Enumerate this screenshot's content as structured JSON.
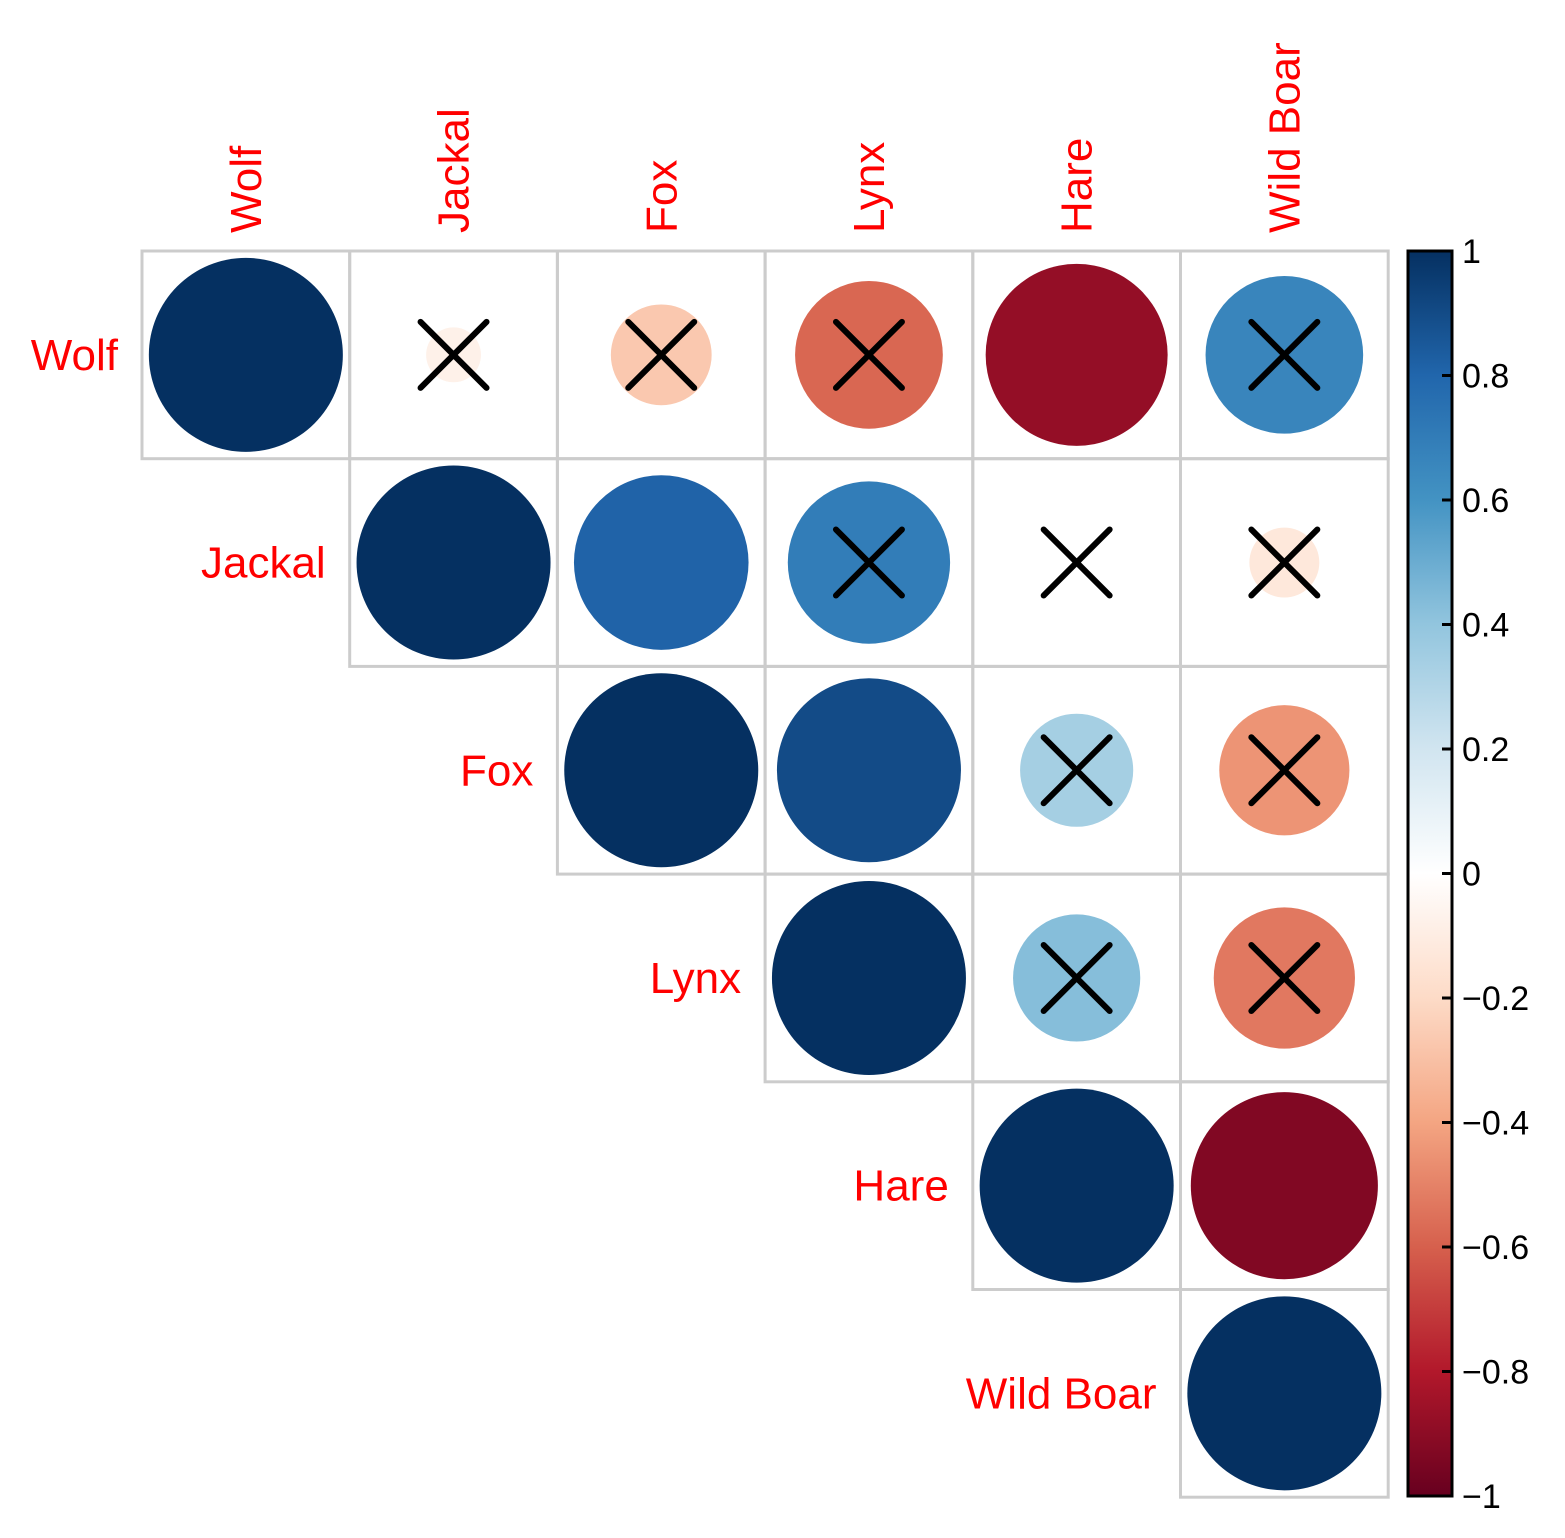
{
  "chart_data": {
    "type": "heatmap",
    "style": "upper-triangle correlation circles",
    "variables": [
      "Wolf",
      "Jackal",
      "Fox",
      "Lynx",
      "Hare",
      "Wild Boar"
    ],
    "matrix": [
      [
        1.0,
        -0.08,
        -0.27,
        -0.58,
        -0.88,
        0.66
      ],
      [
        -0.08,
        1.0,
        0.81,
        0.7,
        0.0,
        -0.13
      ],
      [
        -0.27,
        0.81,
        1.0,
        0.9,
        0.34,
        -0.45
      ],
      [
        -0.58,
        0.7,
        0.9,
        1.0,
        0.43,
        -0.53
      ],
      [
        -0.88,
        0.0,
        0.34,
        0.43,
        1.0,
        -0.93
      ],
      [
        0.66,
        -0.13,
        -0.45,
        -0.53,
        -0.93,
        1.0
      ]
    ],
    "crossed_cells": [
      [
        0,
        1
      ],
      [
        0,
        2
      ],
      [
        0,
        3
      ],
      [
        0,
        5
      ],
      [
        1,
        3
      ],
      [
        1,
        4
      ],
      [
        1,
        5
      ],
      [
        2,
        4
      ],
      [
        2,
        5
      ],
      [
        3,
        4
      ],
      [
        3,
        5
      ]
    ],
    "colorbar": {
      "range": [
        -1,
        1
      ],
      "ticks": [
        "1",
        "0.8",
        "0.6",
        "0.4",
        "0.2",
        "0",
        "−0.2",
        "−0.4",
        "−0.6",
        "−0.8",
        "−1"
      ],
      "tick_values": [
        1,
        0.8,
        0.6,
        0.4,
        0.2,
        0,
        -0.2,
        -0.4,
        -0.6,
        -0.8,
        -1
      ],
      "colors": [
        "#67001F",
        "#B2182B",
        "#D6604D",
        "#F4A582",
        "#FDDBC7",
        "#FFFFFF",
        "#D1E5F0",
        "#92C5DE",
        "#4393C3",
        "#2166AC",
        "#053061"
      ]
    },
    "label_color": "#FF0000",
    "grid_color": "#CCCCCC",
    "cross_color": "#000000"
  }
}
